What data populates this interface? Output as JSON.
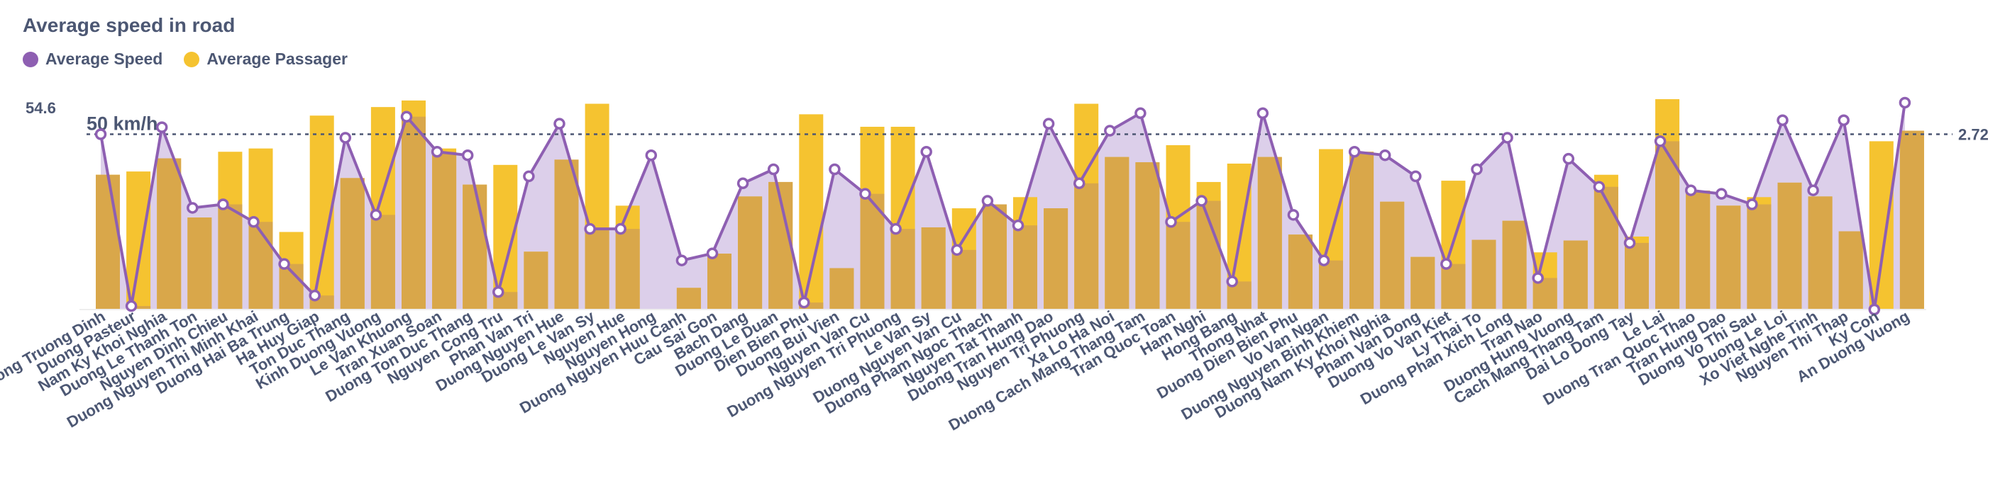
{
  "chart_data": {
    "type": "bar",
    "title": "Average speed in road",
    "legend_position": "top-left",
    "grid": false,
    "categories": [
      "Duong Truong Dinh",
      "Duong Pasteur",
      "Nam Ky Khoi Nghia",
      "Duong Le Thanh Ton",
      "Nguyen Dinh Chieu",
      "Duong Nguyen Thi Minh Khai",
      "Duong Hai Ba Trung",
      "Ha Huy Giap",
      "Ton Duc Thang",
      "Kinh Duong Vuong",
      "Le Van Khuong",
      "Tran Xuan Soan",
      "Duong Ton Duc Thang",
      "Nguyen Cong Tru",
      "Phan Van Tri",
      "Duong Nguyen Hue",
      "Duong Le Van Sy",
      "Nguyen Hue",
      "Nguyen Hong",
      "Duong Nguyen Huu Canh",
      "Cau Sai Gon",
      "Bach Dang",
      "Duong Le Duan",
      "Dien Bien Phu",
      "Duong Bui Vien",
      "Nguyen Van Cu",
      "Duong Nguyen Tri Phuong",
      "Le Van Sy",
      "Duong Nguyen Van Cu",
      "Duong Pham Ngoc Thach",
      "Nguyen Tat Thanh",
      "Duong Tran Hung Dao",
      "Nguyen Tri Phuong",
      "Xa Lo Ha Noi",
      "Duong Cach Mang Thang Tam",
      "Tran Quoc Toan",
      "Ham Nghi",
      "Hong Bang",
      "Thong Nhat",
      "Duong Dien Bien Phu",
      "Vo Van Ngan",
      "Duong Nguyen Binh Khiem",
      "Duong Nam Ky Khoi Nghia",
      "Pham Van Dong",
      "Duong Vo Van Kiet",
      "Ly Thai To",
      "Duong Phan Xich Long",
      "Tran Nao",
      "Duong Hung Vuong",
      "Cach Mang Thang Tam",
      "Dai Lo Dong Tay",
      "Le Lai",
      "Duong Tran Quoc Thao",
      "Tran Hung Dao",
      "Duong Vo Thi Sau",
      "Duong Le Loi",
      "Xo Viet Nghe Tinh",
      "Nguyen Thi Thap",
      "Ky Con",
      "An Duong Vuong"
    ],
    "series": [
      {
        "name": "Average Speed",
        "type": "area-line",
        "axis": "left",
        "color": "#8e5fb2",
        "values": [
          50,
          1,
          52,
          29,
          30,
          25,
          13,
          4,
          49,
          27,
          55,
          45,
          44,
          5,
          38,
          53,
          23,
          23,
          44,
          14,
          16,
          36,
          40,
          2,
          40,
          33,
          23,
          45,
          17,
          31,
          24,
          53,
          36,
          51,
          56,
          25,
          31,
          8,
          56,
          27,
          14,
          45,
          44,
          38,
          13,
          40,
          49,
          9,
          43,
          35,
          19,
          48,
          34,
          33,
          30,
          54,
          34,
          54,
          0,
          59
        ]
      },
      {
        "name": "Average Passager",
        "type": "bar",
        "axis": "right",
        "color": "#f5c330",
        "values": [
          2.05,
          2.1,
          2.3,
          1.4,
          2.4,
          2.45,
          1.18,
          2.95,
          2.0,
          3.08,
          3.18,
          2.45,
          1.9,
          2.2,
          0.88,
          2.28,
          3.13,
          1.58,
          0.0,
          0.33,
          0.85,
          1.72,
          1.94,
          2.97,
          0.63,
          2.78,
          2.78,
          1.25,
          1.54,
          1.6,
          1.71,
          1.54,
          3.13,
          2.32,
          2.24,
          2.5,
          1.94,
          2.22,
          2.32,
          1.14,
          2.44,
          2.4,
          1.64,
          0.8,
          1.96,
          1.06,
          1.35,
          0.87,
          1.05,
          2.05,
          1.11,
          3.2,
          1.81,
          1.58,
          1.71,
          1.93,
          1.72,
          1.19,
          2.56,
          2.72
        ]
      }
    ],
    "y_left": {
      "max_tick_label": "54.6",
      "ylim": [
        0,
        60
      ]
    },
    "y_right": {
      "max_tick_label": "2.72",
      "ylim": [
        0,
        3.2
      ]
    },
    "goal_line": {
      "label": "50 km/h",
      "right_value_label": "2.72",
      "value_left": 50
    }
  },
  "colors": {
    "speed_line": "#8e5fb2",
    "speed_fill": "#dccfea",
    "passager_bar": "#f5c330",
    "overlap_bar": "#d9a74a",
    "text": "#4c5773"
  },
  "legend": [
    {
      "label": "Average Speed",
      "color": "#8e5fb2"
    },
    {
      "label": "Average Passager",
      "color": "#f5c330"
    }
  ]
}
